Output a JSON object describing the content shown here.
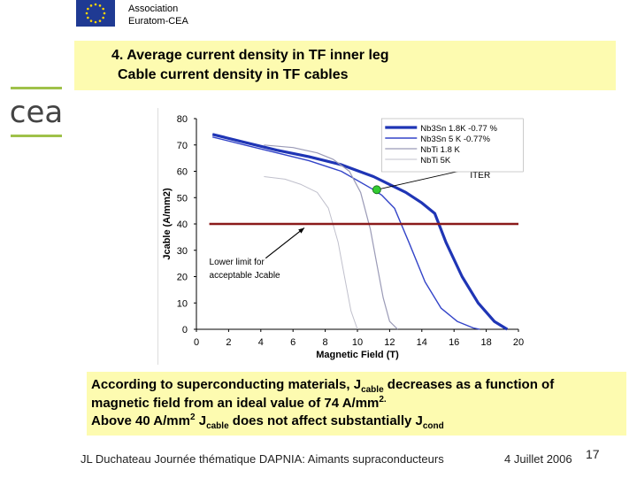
{
  "header": {
    "assoc_line1": "Association",
    "assoc_line2": "Euratom-CEA",
    "flag_icon": "eu-flag-icon",
    "logo_icon": "cea-logo-icon"
  },
  "title": {
    "line1": "4. Average current density in TF inner leg",
    "line2": "Cable current density in TF cables"
  },
  "chart_data": {
    "type": "line",
    "xlabel": "Magnetic Field (T)",
    "ylabel": "Jcable (A/mm2)",
    "xlim": [
      0,
      20
    ],
    "ylim": [
      0,
      80
    ],
    "xticks": [
      "0",
      "2",
      "4",
      "6",
      "8",
      "10",
      "12",
      "14",
      "16",
      "18",
      "20"
    ],
    "yticks": [
      "0",
      "10",
      "20",
      "30",
      "40",
      "50",
      "60",
      "70",
      "80"
    ],
    "grid": false,
    "legend_position": "top-right",
    "series": [
      {
        "name": "Nb3Sn 1.8K -0.77 %",
        "color": "#1f35b5",
        "width": 3.2,
        "x": [
          1,
          3,
          5,
          7,
          9,
          11,
          12,
          13,
          14,
          14.8,
          15.5,
          16.5,
          17.5,
          18.5,
          19.3
        ],
        "y": [
          74,
          71,
          68,
          65.5,
          62.5,
          58,
          55,
          52,
          48,
          44,
          33,
          20,
          10,
          3,
          0
        ]
      },
      {
        "name": "Nb3Sn 5 K -0.77%",
        "color": "#3344c8",
        "width": 1.4,
        "x": [
          1,
          3,
          5,
          7,
          9,
          11,
          11.5,
          12.3,
          13.2,
          14.2,
          15.2,
          16.2,
          17.2,
          17.6
        ],
        "y": [
          73,
          70,
          67,
          64,
          60,
          53,
          51,
          46,
          33,
          18,
          8,
          3,
          0.5,
          0
        ]
      },
      {
        "name": "NbTi 1.8 K",
        "color": "#9a9ab6",
        "width": 1.2,
        "x": [
          4.2,
          6,
          7.5,
          8.5,
          9.5,
          10.2,
          10.8,
          11.2,
          11.6,
          12,
          12.5
        ],
        "y": [
          70,
          69,
          67,
          64.5,
          60,
          52,
          38,
          25,
          12,
          3,
          0
        ]
      },
      {
        "name": "NbTi 5K",
        "color": "#c0c0cc",
        "width": 1.0,
        "x": [
          4.2,
          5.5,
          6.5,
          7.5,
          8.2,
          8.8,
          9.2,
          9.6,
          10
        ],
        "y": [
          58,
          57,
          55,
          52,
          46,
          33,
          20,
          7,
          0
        ]
      }
    ],
    "hline": {
      "y": 40,
      "color": "#8b1a1a"
    },
    "iter_point": {
      "x": 11.2,
      "y": 53,
      "label": "ITER"
    },
    "annotation": {
      "text_line1": "Lower limit for",
      "text_line2": "acceptable Jcable"
    }
  },
  "body_text": {
    "line1_a": "According to superconducting materials, J",
    "line1_sub": "cable",
    "line1_b": " decreases as a function of",
    "line2_a": "magnetic field from an ideal value of 74 A/mm",
    "line2_sup": "2.",
    "line3_a": "Above 40 A/mm",
    "line3_sup": "2",
    "line3_b": "  J",
    "line3_sub": "cable",
    "line3_c": " does not affect substantially J",
    "line3_sub2": "cond"
  },
  "footer": {
    "left": "JL Duchateau  Journée thématique DAPNIA: Aimants supraconducteurs",
    "date": "4  Juillet  2006",
    "page": "17"
  }
}
